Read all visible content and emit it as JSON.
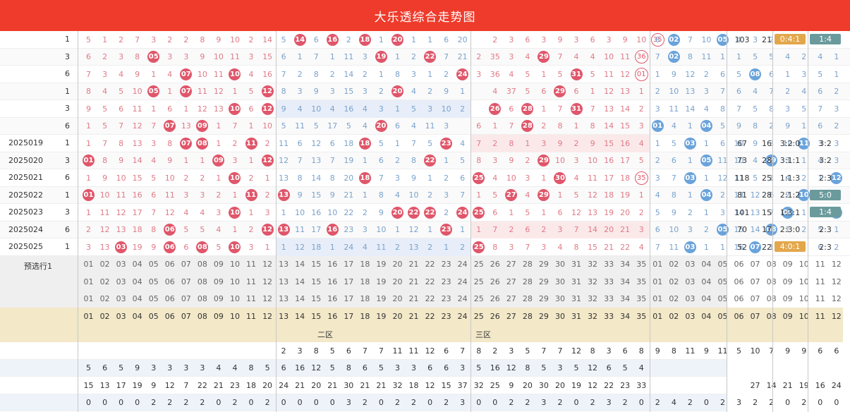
{
  "header": {
    "title": "大乐透综合走势图"
  },
  "rows": [
    {
      "issue": "",
      "sum": "1",
      "front": [
        5,
        1,
        2,
        7,
        3,
        2,
        2,
        8,
        9,
        10,
        2,
        14,
        5,
        "B14",
        6,
        "B16",
        2,
        "B18",
        1,
        "B20",
        1,
        1,
        6,
        20,
        "",
        2,
        3,
        6,
        3,
        9,
        3,
        6,
        3,
        9,
        10,
        "R35"
      ],
      "back": [
        6,
        "B02",
        7,
        10,
        "B05",
        4,
        3,
        2,
        4,
        7,
        1,
        1
      ],
      "stats": [
        "103",
        "21",
        "0:4:1",
        "1:4"
      ]
    },
    {
      "issue": "",
      "sum": "3",
      "front": [
        6,
        2,
        3,
        8,
        "B05",
        3,
        3,
        9,
        10,
        11,
        3,
        15,
        6,
        1,
        7,
        1,
        11,
        3,
        "B19",
        1,
        2,
        "B22",
        7,
        21,
        2,
        35,
        3,
        4,
        "B29",
        7,
        4,
        4,
        10,
        11,
        "R36"
      ],
      "back": [
        7,
        "B02",
        8,
        11,
        1,
        1,
        5,
        5,
        4,
        2,
        4,
        1
      ],
      "stats": [
        "",
        "",
        "",
        ""
      ]
    },
    {
      "issue": "",
      "sum": "6",
      "front": [
        7,
        3,
        4,
        9,
        1,
        4,
        "B07",
        10,
        11,
        "B10",
        4,
        16,
        7,
        2,
        8,
        2,
        14,
        2,
        1,
        8,
        3,
        1,
        2,
        "B24",
        3,
        36,
        4,
        5,
        1,
        5,
        "B31",
        5,
        11,
        12,
        "R01"
      ],
      "back": [
        1,
        9,
        12,
        2,
        6,
        5,
        "B08",
        6,
        1,
        3,
        5,
        1
      ],
      "stats": [
        "",
        "",
        "",
        ""
      ]
    },
    {
      "issue": "",
      "sum": "1",
      "front": [
        8,
        4,
        5,
        10,
        "B05",
        1,
        "B07",
        11,
        12,
        1,
        5,
        "B12",
        8,
        3,
        9,
        3,
        15,
        3,
        2,
        "B20",
        4,
        2,
        9,
        1,
        "",
        4,
        37,
        5,
        6,
        "B29",
        6,
        1,
        12,
        13,
        1
      ],
      "back": [
        2,
        10,
        13,
        3,
        7,
        6,
        4,
        7,
        2,
        4,
        6,
        2
      ],
      "stats": [
        "",
        "",
        "",
        ""
      ]
    },
    {
      "issue": "",
      "sum": "3",
      "front": [
        9,
        5,
        6,
        11,
        1,
        6,
        1,
        12,
        13,
        "B10",
        6,
        "B12",
        9,
        4,
        10,
        4,
        16,
        4,
        3,
        1,
        5,
        3,
        10,
        2,
        "",
        "B26",
        6,
        "B28",
        1,
        7,
        "B31",
        7,
        13,
        14,
        2
      ],
      "back": [
        3,
        11,
        14,
        4,
        8,
        7,
        5,
        8,
        3,
        5,
        7,
        3
      ],
      "stats": [
        "",
        "",
        "",
        ""
      ]
    },
    {
      "issue": "",
      "sum": "6",
      "front": [
        1,
        5,
        7,
        12,
        7,
        "B07",
        13,
        "B09",
        1,
        7,
        1,
        10,
        5,
        11,
        5,
        17,
        5,
        4,
        "B20",
        6,
        4,
        11,
        3,
        "",
        6,
        1,
        7,
        "B28",
        2,
        8,
        1,
        8,
        14,
        15,
        3
      ],
      "back": [
        "B01",
        4,
        1,
        "B04",
        5,
        9,
        8,
        2,
        9,
        1,
        6,
        2
      ],
      "stats": [
        "",
        "",
        "",
        ""
      ]
    },
    {
      "issue": "2025019",
      "sum": "1",
      "front": [
        1,
        7,
        8,
        13,
        3,
        8,
        "B07",
        "B08",
        1,
        2,
        "B11",
        2,
        11,
        6,
        12,
        6,
        18,
        "B18",
        5,
        1,
        7,
        5,
        "B23",
        4,
        7,
        2,
        8,
        1,
        3,
        9,
        2,
        9,
        15,
        16,
        4
      ],
      "back": [
        1,
        5,
        "B03",
        1,
        6,
        10,
        9,
        3,
        10,
        "B11",
        3,
        3
      ],
      "stats": [
        "67",
        "16",
        "3:2:0",
        "3:2"
      ]
    },
    {
      "issue": "2025020",
      "sum": "3",
      "front": [
        "B01",
        8,
        9,
        14,
        4,
        9,
        1,
        1,
        "B09",
        3,
        1,
        "B12",
        12,
        7,
        13,
        7,
        19,
        1,
        6,
        2,
        8,
        "B22",
        1,
        5,
        8,
        3,
        9,
        2,
        "B29",
        10,
        3,
        10,
        16,
        17,
        5
      ],
      "back": [
        2,
        6,
        1,
        "B05",
        11,
        10,
        4,
        "B09",
        3,
        1,
        4,
        3
      ],
      "stats": [
        "73",
        "28",
        "3:1:1",
        "3:2"
      ]
    },
    {
      "issue": "2025021",
      "sum": "6",
      "front": [
        1,
        9,
        10,
        15,
        5,
        10,
        2,
        2,
        1,
        "B10",
        2,
        1,
        13,
        8,
        14,
        8,
        20,
        "B18",
        7,
        3,
        9,
        1,
        2,
        6,
        "B25",
        4,
        10,
        3,
        1,
        "B30",
        4,
        11,
        17,
        18,
        "R35"
      ],
      "back": [
        3,
        7,
        "B03",
        1,
        12,
        11,
        5,
        1,
        4,
        2,
        1,
        "B12"
      ],
      "stats": [
        "118",
        "25",
        "1:1:3",
        "2:3"
      ]
    },
    {
      "issue": "2025022",
      "sum": "1",
      "front": [
        "B01",
        10,
        11,
        16,
        6,
        11,
        3,
        3,
        2,
        1,
        "B11",
        2,
        "B13",
        9,
        15,
        9,
        21,
        1,
        8,
        4,
        10,
        2,
        3,
        7,
        1,
        5,
        "B27",
        4,
        "B29",
        1,
        5,
        12,
        18,
        19,
        1
      ],
      "back": [
        4,
        8,
        1,
        "B04",
        2,
        13,
        12,
        6,
        2,
        "B10",
        3,
        1
      ],
      "stats": [
        "81",
        "28",
        "2:1:2",
        "5:0"
      ]
    },
    {
      "issue": "2025023",
      "sum": "3",
      "front": [
        1,
        11,
        12,
        17,
        7,
        12,
        4,
        4,
        3,
        "B10",
        1,
        3,
        1,
        10,
        16,
        10,
        22,
        2,
        9,
        "B20",
        "B22",
        "B22",
        2,
        "B24",
        "B25",
        6,
        1,
        5,
        1,
        6,
        12,
        13,
        19,
        20,
        2
      ],
      "back": [
        5,
        9,
        2,
        1,
        3,
        14,
        13,
        7,
        "B09",
        1,
        4,
        "B12"
      ],
      "stats": [
        "101",
        "15",
        "1:3:1",
        "1:4"
      ]
    },
    {
      "issue": "2025024",
      "sum": "6",
      "front": [
        2,
        12,
        13,
        18,
        8,
        "B06",
        5,
        5,
        4,
        1,
        2,
        "B12",
        "B13",
        11,
        17,
        "B16",
        23,
        3,
        10,
        1,
        12,
        1,
        "B23",
        1,
        1,
        7,
        2,
        6,
        2,
        3,
        7,
        14,
        20,
        21,
        3
      ],
      "back": [
        6,
        10,
        3,
        2,
        "B05",
        15,
        14,
        "B08",
        1,
        2,
        5,
        1
      ],
      "stats": [
        "70",
        "17",
        "2:3:0",
        "2:3"
      ]
    },
    {
      "issue": "2025025",
      "sum": "1",
      "front": [
        3,
        13,
        "B03",
        19,
        9,
        "B06",
        6,
        "B08",
        5,
        "B10",
        3,
        1,
        1,
        12,
        18,
        1,
        24,
        4,
        11,
        2,
        13,
        2,
        1,
        2,
        "B25",
        8,
        3,
        7,
        3,
        4,
        8,
        15,
        21,
        22,
        4
      ],
      "back": [
        7,
        11,
        "B03",
        1,
        1,
        16,
        "B07",
        1,
        2,
        3,
        6,
        2
      ],
      "stats": [
        "52",
        "22",
        "4:0:1",
        "2:3"
      ]
    }
  ],
  "select_row": {
    "label": "预选行1"
  },
  "front_numbers": [
    "01",
    "02",
    "03",
    "04",
    "05",
    "06",
    "07",
    "08",
    "09",
    "10",
    "11",
    "12",
    "13",
    "14",
    "15",
    "16",
    "17",
    "18",
    "19",
    "20",
    "21",
    "22",
    "23",
    "24",
    "25",
    "26",
    "27",
    "28",
    "29",
    "30",
    "31",
    "32",
    "33",
    "34",
    "35"
  ],
  "back_numbers": [
    "01",
    "02",
    "03",
    "04",
    "05",
    "06",
    "07",
    "08",
    "09",
    "10",
    "11",
    "12"
  ],
  "zone_labels": {
    "zone2": "二区",
    "zone3": "三区"
  },
  "stat_rows": [
    {
      "front": [
        "",
        "",
        "",
        "",
        "",
        "",
        "",
        "",
        "",
        "",
        "",
        "",
        "2",
        "3",
        "8",
        "5",
        "6",
        "7",
        "7",
        "11",
        "11",
        "12",
        "6",
        "7",
        "8",
        "2",
        "3",
        "5",
        "7",
        "7",
        "12",
        "8",
        "3",
        "6",
        "8"
      ],
      "back": [
        "9",
        "8",
        "11",
        "9",
        "11",
        "5",
        "10",
        "7",
        "9",
        "9",
        "6",
        "6"
      ]
    },
    {
      "front": [
        "5",
        "6",
        "5",
        "9",
        "3",
        "3",
        "3",
        "3",
        "4",
        "4",
        "8",
        "5",
        "6",
        "16",
        "12",
        "5",
        "8",
        "6",
        "5",
        "3",
        "3",
        "6",
        "6",
        "3",
        "5",
        "16",
        "12",
        "8",
        "5",
        "3",
        "5",
        "12",
        "6",
        "5",
        "4"
      ],
      "back": [
        "",
        "",
        "",
        "",
        "",
        "",
        "",
        "",
        "",
        "",
        "",
        ""
      ]
    },
    {
      "front": [
        "15",
        "13",
        "17",
        "19",
        "9",
        "12",
        "7",
        "22",
        "21",
        "23",
        "18",
        "20",
        "24",
        "21",
        "20",
        "21",
        "30",
        "21",
        "21",
        "32",
        "18",
        "12",
        "15",
        "37",
        "32",
        "25",
        "9",
        "20",
        "30",
        "20",
        "19",
        "12",
        "22",
        "23",
        "33"
      ],
      "back": [
        "",
        "",
        "",
        "",
        "",
        "",
        "27",
        "14",
        "21",
        "19",
        "16",
        "24"
      ]
    },
    {
      "front": [
        "0",
        "0",
        "0",
        "0",
        "2",
        "2",
        "2",
        "2",
        "0",
        "2",
        "0",
        "2",
        "0",
        "0",
        "0",
        "0",
        "3",
        "2",
        "0",
        "2",
        "2",
        "0",
        "2",
        "3",
        "0",
        "0",
        "2",
        "2",
        "3",
        "2",
        "0",
        "2",
        "3",
        "2",
        "0"
      ],
      "back": [
        "2",
        "4",
        "2",
        "0",
        "2",
        "3",
        "2",
        "2",
        "0",
        "2",
        "0",
        "0"
      ]
    }
  ],
  "colors": {
    "header": "#ee3b2b",
    "red_ball": "#e0566a",
    "blue_ball": "#6aa3db",
    "tag_orange": "#e3a74b",
    "tag_teal": "#6b9a9c"
  }
}
